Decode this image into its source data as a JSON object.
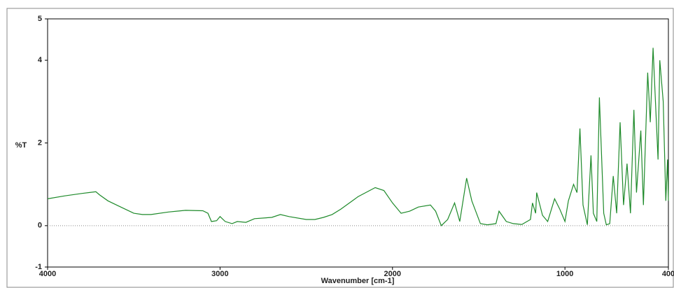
{
  "chart_data": {
    "type": "line",
    "xlabel": "Wavenumber [cm-1]",
    "ylabel": "%T",
    "xlim": [
      4000,
      400
    ],
    "ylim": [
      -1,
      5
    ],
    "xticks": [
      4000,
      3000,
      2000,
      1000,
      400
    ],
    "yticks": [
      -1,
      0,
      2,
      4,
      5
    ],
    "series": [
      {
        "color": "#1e8a2a",
        "x": [
          4000,
          3900,
          3800,
          3720,
          3700,
          3650,
          3600,
          3550,
          3500,
          3450,
          3400,
          3300,
          3200,
          3100,
          3070,
          3050,
          3020,
          3000,
          2970,
          2930,
          2900,
          2850,
          2800,
          2700,
          2650,
          2600,
          2500,
          2450,
          2400,
          2350,
          2300,
          2200,
          2100,
          2050,
          2000,
          1950,
          1900,
          1850,
          1780,
          1750,
          1717,
          1680,
          1640,
          1610,
          1570,
          1540,
          1490,
          1450,
          1400,
          1382,
          1340,
          1300,
          1250,
          1200,
          1188,
          1170,
          1164,
          1130,
          1100,
          1060,
          1030,
          1000,
          980,
          950,
          930,
          913,
          895,
          870,
          849,
          835,
          815,
          800,
          775,
          760,
          740,
          720,
          700,
          680,
          660,
          640,
          620,
          600,
          585,
          560,
          545,
          520,
          505,
          489,
          475,
          460,
          450,
          430,
          415,
          405,
          400
        ],
        "values": [
          0.65,
          0.72,
          0.78,
          0.82,
          0.75,
          0.6,
          0.5,
          0.4,
          0.3,
          0.27,
          0.27,
          0.33,
          0.37,
          0.36,
          0.3,
          0.1,
          0.12,
          0.22,
          0.1,
          0.05,
          0.1,
          0.08,
          0.17,
          0.2,
          0.27,
          0.22,
          0.15,
          0.15,
          0.2,
          0.27,
          0.4,
          0.7,
          0.92,
          0.85,
          0.55,
          0.3,
          0.35,
          0.45,
          0.5,
          0.35,
          0.0,
          0.15,
          0.55,
          0.1,
          1.15,
          0.6,
          0.05,
          0.02,
          0.05,
          0.35,
          0.1,
          0.05,
          0.03,
          0.15,
          0.55,
          0.3,
          0.8,
          0.25,
          0.1,
          0.65,
          0.4,
          0.1,
          0.6,
          1.0,
          0.8,
          2.35,
          0.5,
          0.02,
          1.7,
          0.3,
          0.1,
          3.1,
          0.3,
          0.02,
          0.05,
          1.2,
          0.3,
          2.5,
          0.5,
          1.5,
          0.3,
          2.8,
          0.8,
          2.3,
          0.5,
          3.7,
          2.5,
          4.3,
          3.0,
          1.6,
          4.0,
          3.0,
          0.6,
          1.6,
          0.6
        ]
      }
    ]
  }
}
